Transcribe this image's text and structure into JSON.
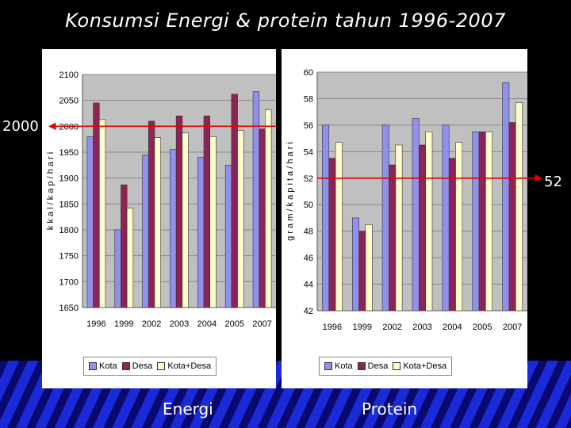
{
  "title": "Konsumsi Energi & protein tahun 1996-2007",
  "colors": {
    "kota": "#9090ee",
    "desa": "#8e2355",
    "kota_desa": "#ffffcc",
    "reference_line": "#e00000",
    "plot_bg": "#c0c0c0"
  },
  "captions": {
    "energi": "Energi",
    "protein": "Protein"
  },
  "reference_labels": {
    "energi": "2000",
    "protein": "52"
  },
  "chart_data": [
    {
      "type": "bar",
      "title": "",
      "xlabel": "",
      "ylabel": "k k a l / k a p / h a r i",
      "categories": [
        "1996",
        "1999",
        "2002",
        "2003",
        "2004",
        "2005",
        "2007"
      ],
      "ylim": [
        1650,
        2100
      ],
      "yticks": [
        "1650",
        "1700",
        "1750",
        "1800",
        "1850",
        "1900",
        "1950",
        "2000",
        "2050",
        "2100"
      ],
      "grid": true,
      "legend": "bottom",
      "reference_line": 2000,
      "series": [
        {
          "name": "Kota",
          "values": [
            1980,
            1800,
            1945,
            1955,
            1940,
            1925,
            2067
          ]
        },
        {
          "name": "Desa",
          "values": [
            2045,
            1887,
            2010,
            2020,
            2020,
            2062,
            1995
          ]
        },
        {
          "name": "Kota+Desa",
          "values": [
            2013,
            1842,
            1978,
            1987,
            1980,
            1992,
            2032
          ]
        }
      ]
    },
    {
      "type": "bar",
      "title": "",
      "xlabel": "",
      "ylabel": "g r a m / k a p i t a / h a r i",
      "categories": [
        "1996",
        "1999",
        "2002",
        "2003",
        "2004",
        "2005",
        "2007"
      ],
      "ylim": [
        42,
        60
      ],
      "yticks": [
        "42",
        "44",
        "46",
        "48",
        "50",
        "52",
        "54",
        "56",
        "58",
        "60"
      ],
      "grid": true,
      "legend": "bottom",
      "reference_line": 52,
      "series": [
        {
          "name": "Kota",
          "values": [
            56,
            49,
            56,
            56.5,
            56,
            55.5,
            59.2
          ]
        },
        {
          "name": "Desa",
          "values": [
            53.5,
            48,
            53,
            54.5,
            53.5,
            55.5,
            56.2
          ]
        },
        {
          "name": "Kota+Desa",
          "values": [
            54.7,
            48.5,
            54.5,
            55.5,
            54.7,
            55.5,
            57.7
          ]
        }
      ]
    }
  ]
}
